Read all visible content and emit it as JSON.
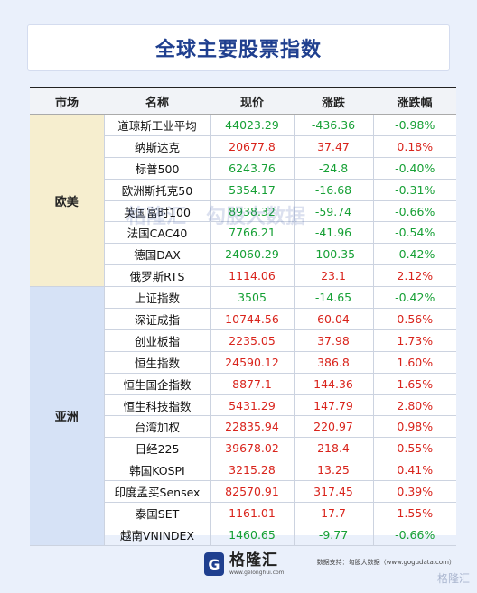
{
  "title": "全球主要股票指数",
  "headers": [
    "市场",
    "名称",
    "现价",
    "涨跌",
    "涨跌幅"
  ],
  "regions": [
    {
      "name": "欧美",
      "rows": [
        {
          "name": "道琼斯工业平均",
          "price": "44023.29",
          "change": "-436.36",
          "pct": "-0.98%"
        },
        {
          "name": "纳斯达克",
          "price": "20677.8",
          "change": "37.47",
          "pct": "0.18%"
        },
        {
          "name": "标普500",
          "price": "6243.76",
          "change": "-24.8",
          "pct": "-0.40%"
        },
        {
          "name": "欧洲斯托克50",
          "price": "5354.17",
          "change": "-16.68",
          "pct": "-0.31%"
        },
        {
          "name": "英国富时100",
          "price": "8938.32",
          "change": "-59.74",
          "pct": "-0.66%"
        },
        {
          "name": "法国CAC40",
          "price": "7766.21",
          "change": "-41.96",
          "pct": "-0.54%"
        },
        {
          "name": "德国DAX",
          "price": "24060.29",
          "change": "-100.35",
          "pct": "-0.42%"
        },
        {
          "name": "俄罗斯RTS",
          "price": "1114.06",
          "change": "23.1",
          "pct": "2.12%"
        }
      ]
    },
    {
      "name": "亚洲",
      "rows": [
        {
          "name": "上证指数",
          "price": "3505",
          "change": "-14.65",
          "pct": "-0.42%"
        },
        {
          "name": "深证成指",
          "price": "10744.56",
          "change": "60.04",
          "pct": "0.56%"
        },
        {
          "name": "创业板指",
          "price": "2235.05",
          "change": "37.98",
          "pct": "1.73%"
        },
        {
          "name": "恒生指数",
          "price": "24590.12",
          "change": "386.8",
          "pct": "1.60%"
        },
        {
          "name": "恒生国企指数",
          "price": "8877.1",
          "change": "144.36",
          "pct": "1.65%"
        },
        {
          "name": "恒生科技指数",
          "price": "5431.29",
          "change": "147.79",
          "pct": "2.80%"
        },
        {
          "name": "台湾加权",
          "price": "22835.94",
          "change": "220.97",
          "pct": "0.98%"
        },
        {
          "name": "日经225",
          "price": "39678.02",
          "change": "218.4",
          "pct": "0.55%"
        },
        {
          "name": "韩国KOSPI",
          "price": "3215.28",
          "change": "13.25",
          "pct": "0.41%"
        },
        {
          "name": "印度孟买Sensex",
          "price": "82570.91",
          "change": "317.45",
          "pct": "0.39%"
        },
        {
          "name": "泰国SET",
          "price": "1161.01",
          "change": "17.7",
          "pct": "1.55%"
        },
        {
          "name": "越南VNINDEX",
          "price": "1460.65",
          "change": "-9.77",
          "pct": "-0.66%"
        }
      ]
    }
  ],
  "watermark": [
    "格隆汇",
    "勾股大数据"
  ],
  "footer": {
    "logo_cn": "格隆汇",
    "logo_en": "www.gelonghui.com",
    "source": "数据支持：勾股大数据（www.gogudata.com）",
    "corner": "格隆汇"
  },
  "colors": {
    "up": "#d9241c",
    "down": "#16a035",
    "title": "#1f3f8f"
  }
}
